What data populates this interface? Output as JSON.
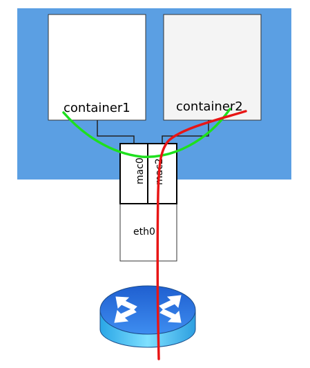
{
  "containers": [
    {
      "label": "container1"
    },
    {
      "label": "container2"
    }
  ],
  "interfaces": {
    "mac0": "mac0",
    "mac2": "mac2",
    "eth0": "eth0"
  },
  "colors": {
    "host_background": "#5b9fe3",
    "container_fill": "#ffffff",
    "container2_fill": "#f4f4f4",
    "green_path": "#1ee01e",
    "red_path": "#e81515",
    "router_top": "#2e7ae0",
    "router_side": "#3fb8ee"
  },
  "icons": {
    "router": "router-icon"
  }
}
